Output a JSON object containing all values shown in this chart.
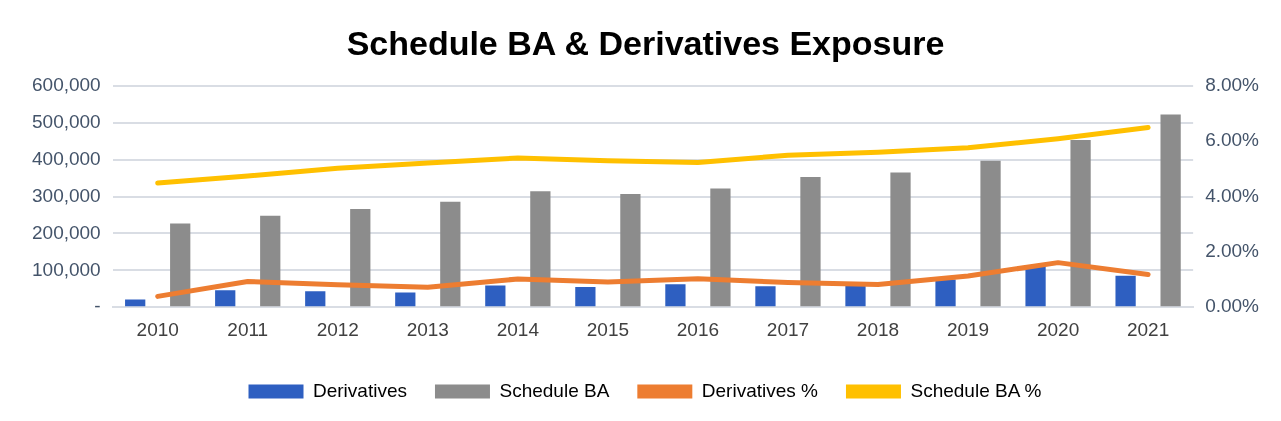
{
  "chart_data": {
    "type": "bar",
    "title": "Schedule BA & Derivatives Exposure",
    "categories": [
      "2010",
      "2011",
      "2012",
      "2013",
      "2014",
      "2015",
      "2016",
      "2017",
      "2018",
      "2019",
      "2020",
      "2021"
    ],
    "series": [
      {
        "name": "Derivatives",
        "color": "#2e5fc1",
        "values": [
          21000,
          46000,
          43000,
          40000,
          59000,
          55000,
          62000,
          57000,
          59000,
          75000,
          109000,
          85000
        ]
      },
      {
        "name": "Schedule BA",
        "color": "#8c8c8c",
        "values": [
          227000,
          248000,
          266000,
          286000,
          314000,
          307000,
          322000,
          353000,
          365000,
          397000,
          453000,
          522000
        ]
      },
      {
        "name": "Derivatives %",
        "type": "line",
        "axis": "y2",
        "color": "#ed7d31",
        "values": [
          0.39,
          0.93,
          0.81,
          0.72,
          1.02,
          0.91,
          1.03,
          0.89,
          0.82,
          1.13,
          1.61,
          1.18
        ]
      },
      {
        "name": "Schedule BA %",
        "type": "line",
        "axis": "y2",
        "color": "#ffc000",
        "values": [
          4.49,
          4.74,
          5.02,
          5.21,
          5.39,
          5.29,
          5.23,
          5.49,
          5.6,
          5.76,
          6.09,
          6.49
        ]
      }
    ],
    "ylim": [
      0,
      600000
    ],
    "yticks": [
      {
        "value": 0,
        "label": "-"
      },
      {
        "value": 100000,
        "label": "100,000"
      },
      {
        "value": 200000,
        "label": "200,000"
      },
      {
        "value": 300000,
        "label": "300,000"
      },
      {
        "value": 400000,
        "label": "400,000"
      },
      {
        "value": 500000,
        "label": "500,000"
      },
      {
        "value": 600000,
        "label": "600,000"
      }
    ],
    "y2lim": [
      0,
      8
    ],
    "y2ticks": [
      {
        "value": 0,
        "label": "0.00%"
      },
      {
        "value": 2,
        "label": "2.00%"
      },
      {
        "value": 4,
        "label": "4.00%"
      },
      {
        "value": 6,
        "label": "6.00%"
      },
      {
        "value": 8,
        "label": "8.00%"
      }
    ],
    "grid": "y",
    "legend": "bottom",
    "marker": "none"
  }
}
